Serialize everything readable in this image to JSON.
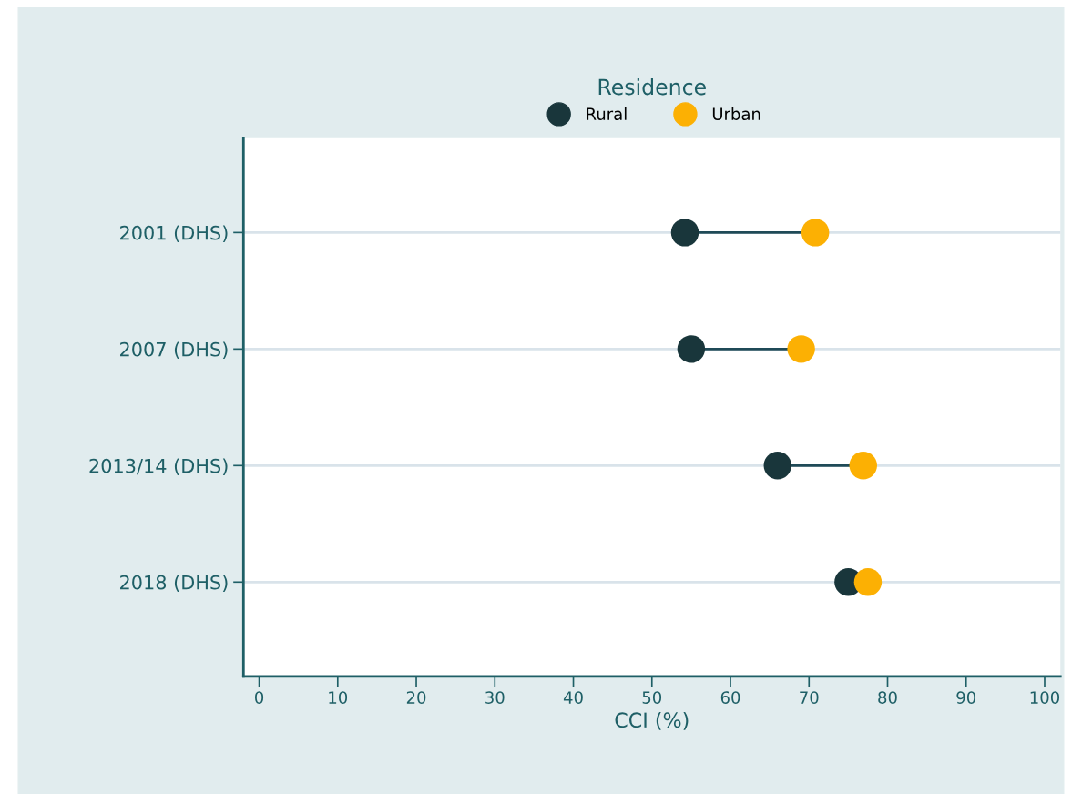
{
  "chart_data": {
    "type": "scatter",
    "orientation": "horizontal",
    "xlabel": "CCI (%)",
    "legend_title": "Residence",
    "categories": [
      "2001 (DHS)",
      "2007 (DHS)",
      "2013/14 (DHS)",
      "2018 (DHS)"
    ],
    "series": [
      {
        "name": "Rural",
        "color": "#19363b",
        "values": [
          54.2,
          55.0,
          66.0,
          75.0
        ]
      },
      {
        "name": "Urban",
        "color": "#fcb003",
        "values": [
          70.8,
          69.0,
          76.9,
          77.5
        ]
      }
    ],
    "xlim": [
      -2,
      102
    ],
    "xticks": [
      0,
      10,
      20,
      30,
      40,
      50,
      60,
      70,
      80,
      90,
      100
    ],
    "grid": "y",
    "legend": "top",
    "marker": "circle",
    "line_style": "solid"
  }
}
